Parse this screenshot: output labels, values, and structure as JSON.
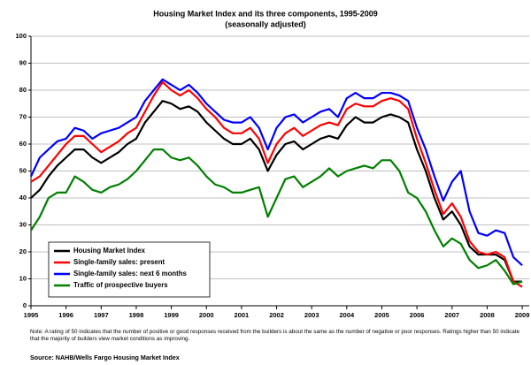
{
  "chart_data": {
    "type": "line",
    "title": "Housing Market Index and its three components, 1995-2009",
    "subtitle": "(seasonally adjusted)",
    "note": "Note: A rating of 50 indicates that the number of positive or good responses received from the builders is about the same as the number of negative or poor responses. Ratings higher than 50 indicate that the majority of builders view market conditions as improving.",
    "source": "Source: NAHB/Wells Fargo Housing Market Index",
    "x": [
      1995,
      1995.25,
      1995.5,
      1995.75,
      1996,
      1996.25,
      1996.5,
      1996.75,
      1997,
      1997.25,
      1997.5,
      1997.75,
      1998,
      1998.25,
      1998.5,
      1998.75,
      1999,
      1999.25,
      1999.5,
      1999.75,
      2000,
      2000.25,
      2000.5,
      2000.75,
      2001,
      2001.25,
      2001.5,
      2001.75,
      2002,
      2002.25,
      2002.5,
      2002.75,
      2003,
      2003.25,
      2003.5,
      2003.75,
      2004,
      2004.25,
      2004.5,
      2004.75,
      2005,
      2005.25,
      2005.5,
      2005.75,
      2006,
      2006.25,
      2006.5,
      2006.75,
      2007,
      2007.25,
      2007.5,
      2007.75,
      2008,
      2008.25,
      2008.5,
      2008.75,
      2009
    ],
    "series": [
      {
        "name": "Housing Market Index",
        "color": "#000000",
        "values": [
          40,
          43,
          48,
          52,
          55,
          58,
          58,
          55,
          53,
          55,
          57,
          60,
          62,
          68,
          72,
          76,
          75,
          73,
          74,
          72,
          68,
          65,
          62,
          60,
          60,
          62,
          58,
          50,
          56,
          60,
          61,
          58,
          60,
          62,
          63,
          62,
          67,
          70,
          68,
          68,
          70,
          71,
          70,
          68,
          58,
          50,
          40,
          32,
          35,
          30,
          22,
          19,
          19,
          19,
          17,
          9,
          9
        ]
      },
      {
        "name": "Single-family sales: present",
        "color": "#ff0000",
        "values": [
          46,
          48,
          52,
          56,
          60,
          63,
          63,
          60,
          57,
          59,
          61,
          64,
          66,
          72,
          78,
          83,
          80,
          78,
          80,
          77,
          73,
          70,
          66,
          64,
          64,
          66,
          62,
          53,
          60,
          64,
          66,
          63,
          65,
          67,
          68,
          67,
          73,
          75,
          74,
          74,
          76,
          77,
          76,
          73,
          62,
          53,
          43,
          34,
          38,
          33,
          24,
          20,
          19,
          20,
          18,
          9,
          7
        ]
      },
      {
        "name": "Single-family sales: next 6 months",
        "color": "#0000ff",
        "values": [
          48,
          55,
          58,
          61,
          62,
          66,
          65,
          62,
          64,
          65,
          66,
          68,
          70,
          76,
          80,
          84,
          82,
          80,
          82,
          79,
          75,
          72,
          69,
          68,
          68,
          70,
          66,
          58,
          66,
          70,
          71,
          68,
          70,
          72,
          73,
          70,
          77,
          79,
          77,
          77,
          79,
          79,
          78,
          76,
          66,
          58,
          48,
          39,
          46,
          50,
          35,
          27,
          26,
          28,
          27,
          18,
          15
        ]
      },
      {
        "name": "Traffic of prospective buyers",
        "color": "#008000",
        "values": [
          28,
          33,
          40,
          42,
          42,
          48,
          46,
          43,
          42,
          44,
          45,
          47,
          50,
          54,
          58,
          58,
          55,
          54,
          55,
          52,
          48,
          45,
          44,
          42,
          42,
          43,
          44,
          33,
          40,
          47,
          48,
          44,
          46,
          48,
          51,
          48,
          50,
          51,
          52,
          51,
          54,
          54,
          50,
          42,
          40,
          35,
          28,
          22,
          25,
          23,
          17,
          14,
          15,
          17,
          13,
          8,
          9
        ]
      }
    ],
    "xlim": [
      1995,
      2009.2
    ],
    "xticks": [
      1995,
      1996,
      1997,
      1998,
      1999,
      2000,
      2001,
      2002,
      2003,
      2004,
      2005,
      2006,
      2007,
      2008,
      2009
    ],
    "ylim": [
      0,
      100
    ],
    "yticks": [
      0,
      10,
      20,
      30,
      40,
      50,
      60,
      70,
      80,
      90,
      100
    ],
    "grid": true,
    "legend": "lower left"
  }
}
